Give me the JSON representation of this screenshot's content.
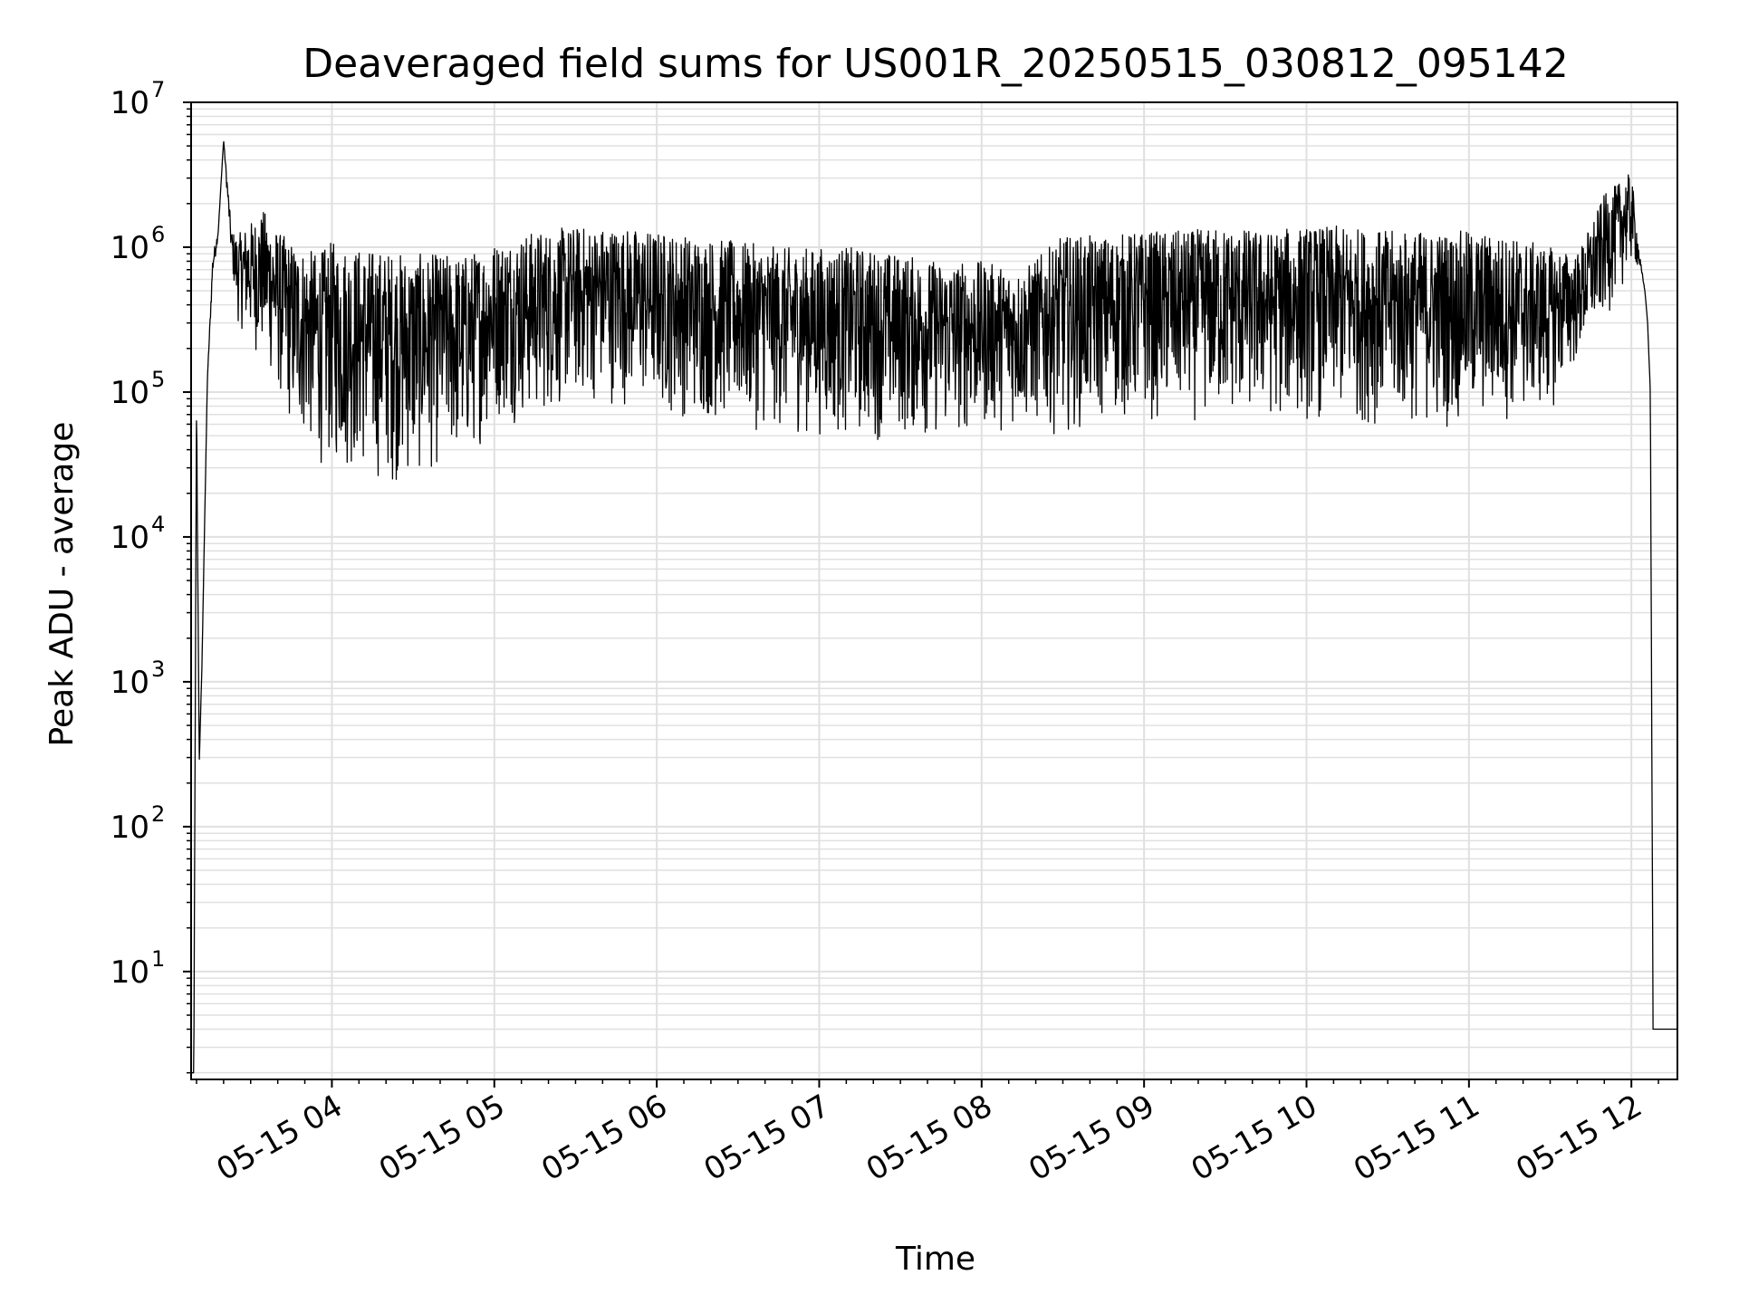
{
  "chart_data": {
    "type": "line",
    "title": "Deaveraged field sums for US001R_20250515_030812_095142",
    "xlabel": "Time",
    "ylabel": "Peak ADU - average",
    "yscale": "log",
    "ylim": [
      1.8,
      10000000
    ],
    "xlim": [
      "2025-05-15 03:08",
      "2025-05-15 12:17"
    ],
    "grid": true,
    "line_color": "#000000",
    "grid_color": "#e0e0e0",
    "x_ticks": [
      {
        "value": "2025-05-15 04:00",
        "label": "05-15 04"
      },
      {
        "value": "2025-05-15 05:00",
        "label": "05-15 05"
      },
      {
        "value": "2025-05-15 06:00",
        "label": "05-15 06"
      },
      {
        "value": "2025-05-15 07:00",
        "label": "05-15 07"
      },
      {
        "value": "2025-05-15 08:00",
        "label": "05-15 08"
      },
      {
        "value": "2025-05-15 09:00",
        "label": "05-15 09"
      },
      {
        "value": "2025-05-15 10:00",
        "label": "05-15 10"
      },
      {
        "value": "2025-05-15 11:00",
        "label": "05-15 11"
      },
      {
        "value": "2025-05-15 12:00",
        "label": "05-15 12"
      }
    ],
    "y_ticks": [
      {
        "value": 10,
        "base": "10",
        "exp": "1"
      },
      {
        "value": 100,
        "base": "10",
        "exp": "2"
      },
      {
        "value": 1000,
        "base": "10",
        "exp": "3"
      },
      {
        "value": 10000,
        "base": "10",
        "exp": "4"
      },
      {
        "value": 100000,
        "base": "10",
        "exp": "5"
      },
      {
        "value": 1000000,
        "base": "10",
        "exp": "6"
      },
      {
        "value": 10000000,
        "base": "10",
        "exp": "7"
      }
    ],
    "series": [
      {
        "x": [
          "2025-05-15 03:08",
          "2025-05-15 03:09",
          "2025-05-15 03:10",
          "2025-05-15 03:11",
          "2025-05-15 03:12",
          "2025-05-15 03:14",
          "2025-05-15 03:16",
          "2025-05-15 03:18",
          "2025-05-15 03:20",
          "2025-05-15 03:23",
          "2025-05-15 03:25",
          "2025-05-15 03:30",
          "2025-05-15 03:35",
          "2025-05-15 03:40",
          "2025-05-15 03:45",
          "2025-05-15 03:50",
          "2025-05-15 03:55",
          "2025-05-15 04:00",
          "2025-05-15 04:10",
          "2025-05-15 04:20",
          "2025-05-15 04:30",
          "2025-05-15 04:40",
          "2025-05-15 04:50",
          "2025-05-15 05:00",
          "2025-05-15 05:15",
          "2025-05-15 05:30",
          "2025-05-15 05:45",
          "2025-05-15 06:00",
          "2025-05-15 06:15",
          "2025-05-15 06:30",
          "2025-05-15 06:45",
          "2025-05-15 07:00",
          "2025-05-15 07:15",
          "2025-05-15 07:30",
          "2025-05-15 07:45",
          "2025-05-15 08:00",
          "2025-05-15 08:15",
          "2025-05-15 08:30",
          "2025-05-15 08:45",
          "2025-05-15 09:00",
          "2025-05-15 09:15",
          "2025-05-15 09:30",
          "2025-05-15 09:45",
          "2025-05-15 10:00",
          "2025-05-15 10:15",
          "2025-05-15 10:30",
          "2025-05-15 10:45",
          "2025-05-15 11:00",
          "2025-05-15 11:15",
          "2025-05-15 11:30",
          "2025-05-15 11:40",
          "2025-05-15 11:50",
          "2025-05-15 12:00",
          "2025-05-15 12:03",
          "2025-05-15 12:05",
          "2025-05-15 12:06",
          "2025-05-15 12:07",
          "2025-05-15 12:08",
          "2025-05-15 12:10",
          "2025-05-15 12:17"
        ],
        "lower": [
          2,
          2,
          60000,
          270,
          1300,
          120000,
          600000,
          1200000,
          5500000,
          700000,
          300000,
          200000,
          150000,
          90000,
          50000,
          40000,
          30000,
          28000,
          25000,
          22000,
          22000,
          28000,
          30000,
          60000,
          60000,
          80000,
          80000,
          70000,
          60000,
          55000,
          50000,
          48000,
          45000,
          45000,
          45000,
          50000,
          55000,
          50000,
          60000,
          60000,
          60000,
          60000,
          60000,
          60000,
          60000,
          55000,
          55000,
          55000,
          60000,
          70000,
          150000,
          300000,
          700000,
          700000,
          500000,
          300000,
          100000,
          4,
          4,
          4
        ],
        "upper": [
          2,
          2,
          120000,
          270,
          1300,
          120000,
          900000,
          1300000,
          5500000,
          1300000,
          1200000,
          1500000,
          1800000,
          1300000,
          1100000,
          1000000,
          900000,
          1100000,
          1000000,
          950000,
          900000,
          900000,
          900000,
          1100000,
          1300000,
          1400000,
          1400000,
          1300000,
          1200000,
          1100000,
          1000000,
          1000000,
          1000000,
          900000,
          800000,
          800000,
          700000,
          1200000,
          1200000,
          1300000,
          1300000,
          1400000,
          1300000,
          1400000,
          1400000,
          1300000,
          1300000,
          1300000,
          1200000,
          1000000,
          900000,
          2300000,
          3300000,
          900000,
          500000,
          300000,
          100000,
          4,
          4,
          4
        ]
      }
    ]
  }
}
